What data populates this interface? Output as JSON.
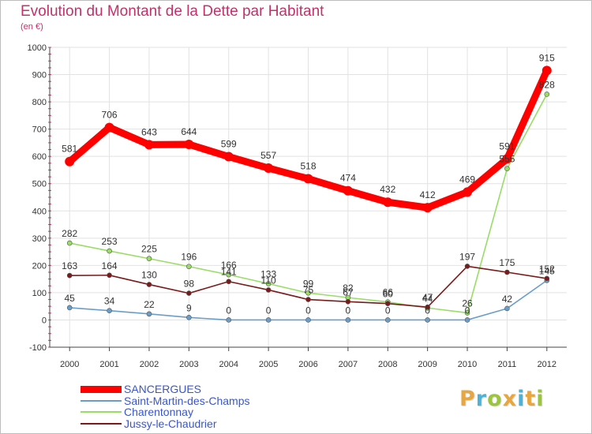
{
  "header": {
    "title": "Evolution du Montant de la Dette par Habitant",
    "unit": "(en €)"
  },
  "brand": {
    "letters": [
      "P",
      "r",
      "o",
      "x",
      "i",
      "t",
      "i"
    ],
    "colors": [
      "#e8a640",
      "#4bb3d8",
      "#9bc53d",
      "#e8a640",
      "#4bb3d8",
      "#e8a640",
      "#9bc53d"
    ]
  },
  "chart_data": {
    "type": "line",
    "x": [
      "2000",
      "2001",
      "2002",
      "2003",
      "2004",
      "2005",
      "2006",
      "2007",
      "2008",
      "2009",
      "2010",
      "2011",
      "2012"
    ],
    "ylim": [
      -100,
      1000
    ],
    "yticks": [
      "-100",
      "0",
      "100",
      "200",
      "300",
      "400",
      "500",
      "600",
      "700",
      "800",
      "900",
      "1000"
    ],
    "series": [
      {
        "name": "SANCERGUES",
        "color": "#ff0000",
        "values": [
          581,
          706,
          643,
          644,
          599,
          557,
          518,
          474,
          432,
          412,
          469,
          591,
          915
        ]
      },
      {
        "name": "Saint-Martin-des-Champs",
        "color": "#6a9ec8",
        "values": [
          45,
          34,
          22,
          9,
          0,
          0,
          0,
          0,
          0,
          0,
          0,
          42,
          145
        ]
      },
      {
        "name": "Charentonnay",
        "color": "#99dd66",
        "values": [
          282,
          253,
          225,
          196,
          166,
          133,
          99,
          82,
          66,
          44,
          26,
          555,
          828
        ]
      },
      {
        "name": "Jussy-le-Chaudrier",
        "color": "#7a1a1a",
        "values": [
          163,
          164,
          130,
          98,
          141,
          110,
          75,
          67,
          60,
          47,
          197,
          175,
          152
        ]
      }
    ]
  }
}
